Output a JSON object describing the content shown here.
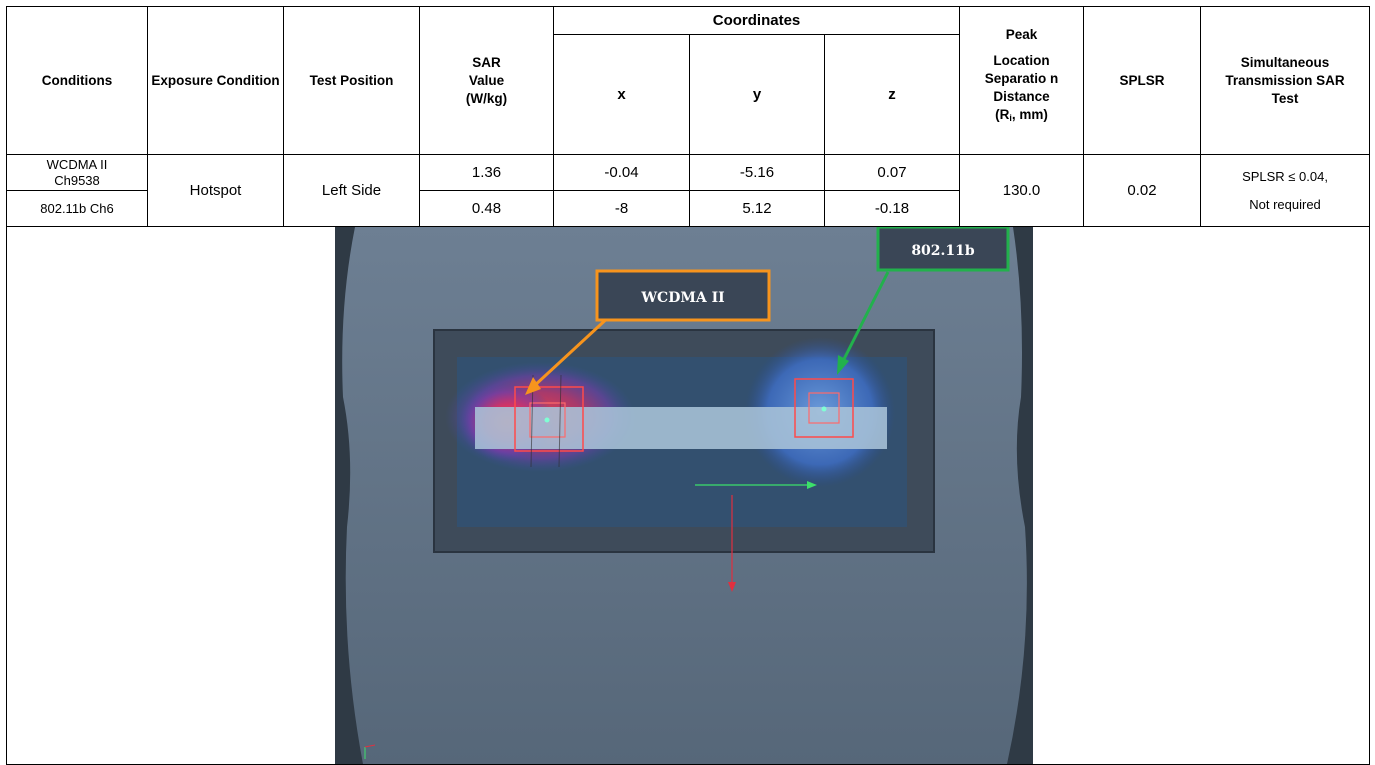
{
  "table": {
    "headers": {
      "conditions": "Conditions",
      "exposure_condition": "Exposure Condition",
      "test_position": "Test Position",
      "sar_value": "SAR Value (W/kg)",
      "coordinates": "Coordinates",
      "x": "x",
      "y": "y",
      "z": "z",
      "peak_location_line1": "Peak",
      "peak_location_line2": "Location Separatio n Distance",
      "peak_location_unit_open": "(R",
      "peak_location_unit_sub": "i",
      "peak_location_unit_close": ", mm)",
      "splsr": "SPLSR",
      "simultaneous": "Simultaneous Transmission SAR Test"
    },
    "rows": [
      {
        "condition": "WCDMA II Ch9538",
        "sar": "1.36",
        "x": "-0.04",
        "y": "-5.16",
        "z": "0.07"
      },
      {
        "condition": "802.11b Ch6",
        "sar": "0.48",
        "x": "-8",
        "y": "5.12",
        "z": "-0.18"
      }
    ],
    "shared": {
      "exposure_condition": "Hotspot",
      "test_position": "Left Side",
      "peak_separation": "130.0",
      "splsr": "0.02",
      "simultaneous_line1": "SPLSR ≤ 0.04,",
      "simultaneous_line2": "Not required"
    }
  },
  "figure": {
    "label_wcdma": "WCDMA II",
    "label_wifi": "802.11b",
    "colors": {
      "wcdma_box": "#f7941d",
      "wifi_box": "#22b14c",
      "background": "#5b6e84"
    }
  }
}
